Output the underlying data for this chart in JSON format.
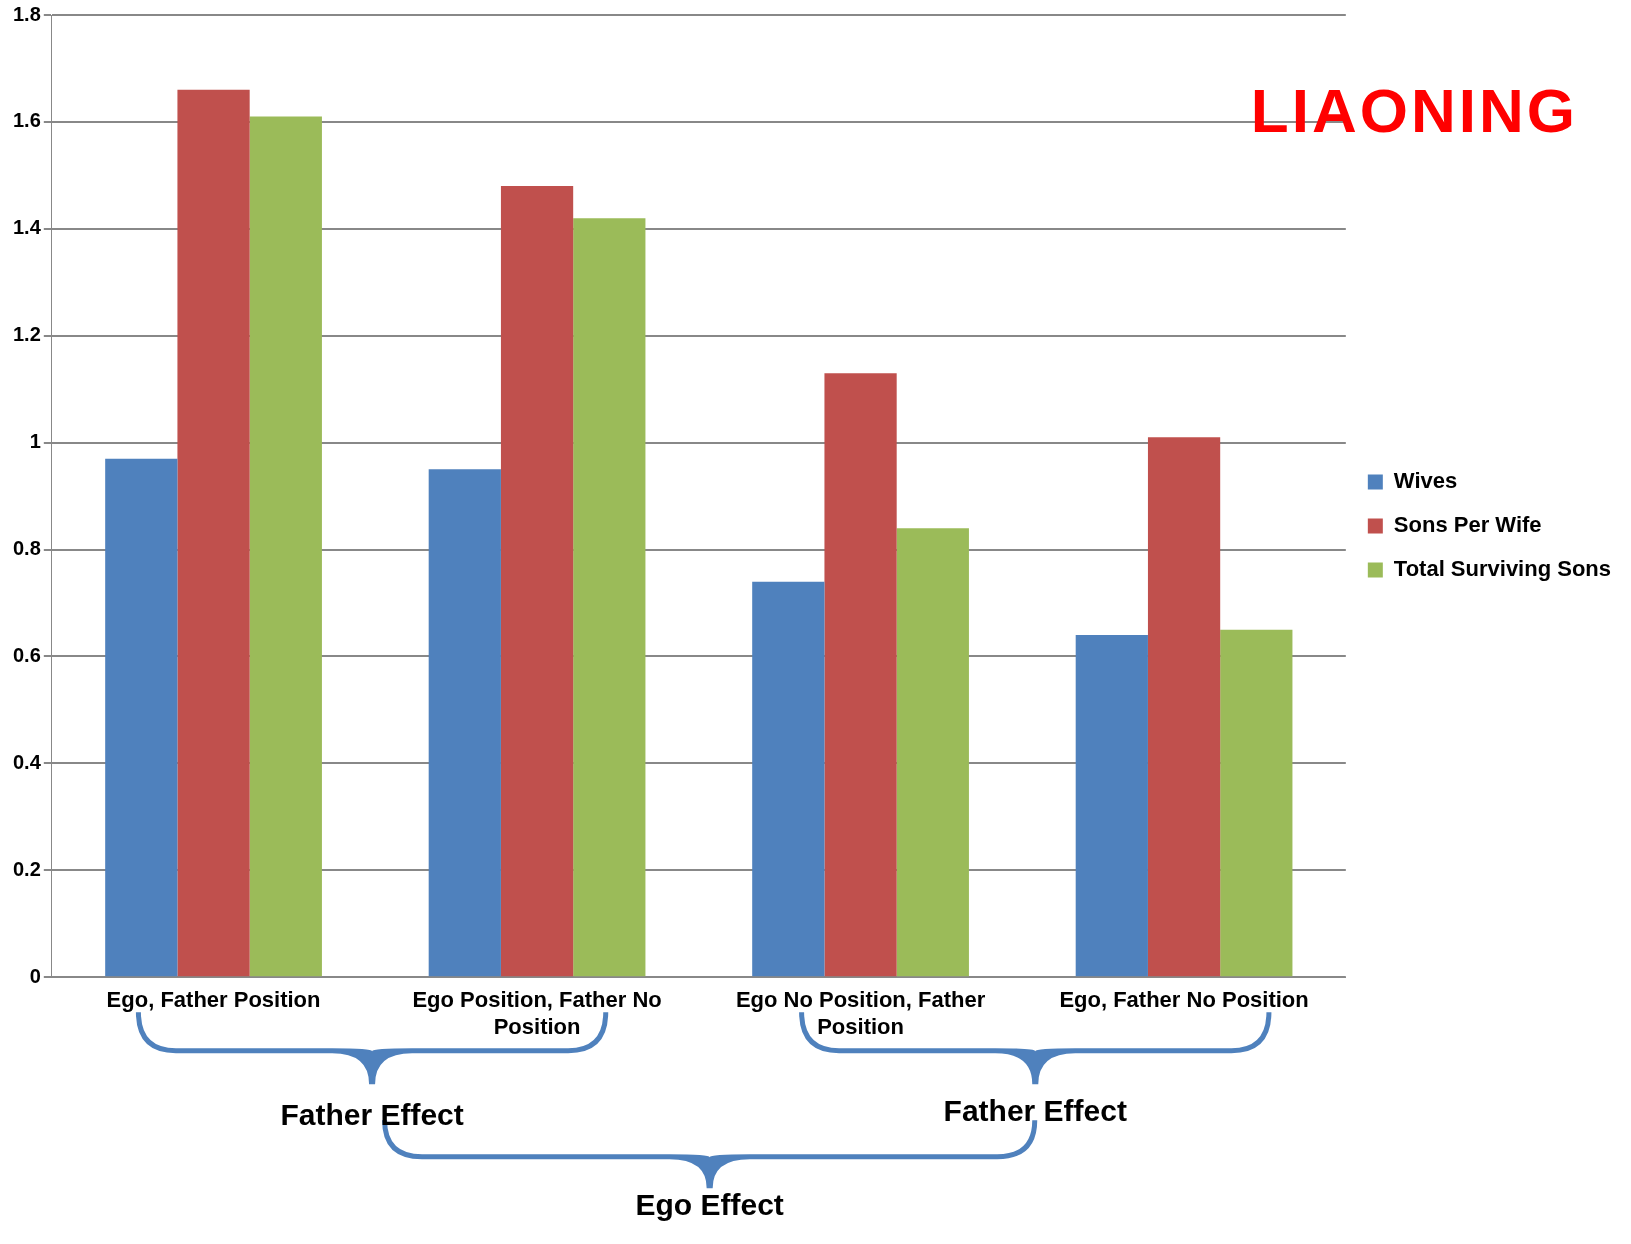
{
  "chart_data": {
    "type": "bar",
    "title": "LIAONING",
    "categories": [
      "Ego, Father Position",
      "Ego Position, Father No Position",
      "Ego No Position, Father Position",
      "Ego, Father No Position"
    ],
    "series": [
      {
        "name": "Wives",
        "color": "#4f81bd",
        "values": [
          0.97,
          0.95,
          0.74,
          0.64
        ]
      },
      {
        "name": "Sons Per Wife",
        "color": "#c0504d",
        "values": [
          1.66,
          1.48,
          1.13,
          1.01
        ]
      },
      {
        "name": "Total Surviving Sons",
        "color": "#9bbb59",
        "values": [
          1.61,
          1.42,
          0.84,
          0.65
        ]
      }
    ],
    "ylim": [
      0,
      1.8
    ],
    "yticks": [
      0,
      0.2,
      0.4,
      0.6,
      0.8,
      1,
      1.2,
      1.4,
      1.6,
      1.8
    ],
    "grid": "y",
    "legend": "right",
    "annotations": [
      "Father Effect",
      "Father Effect",
      "Ego Effect"
    ]
  }
}
